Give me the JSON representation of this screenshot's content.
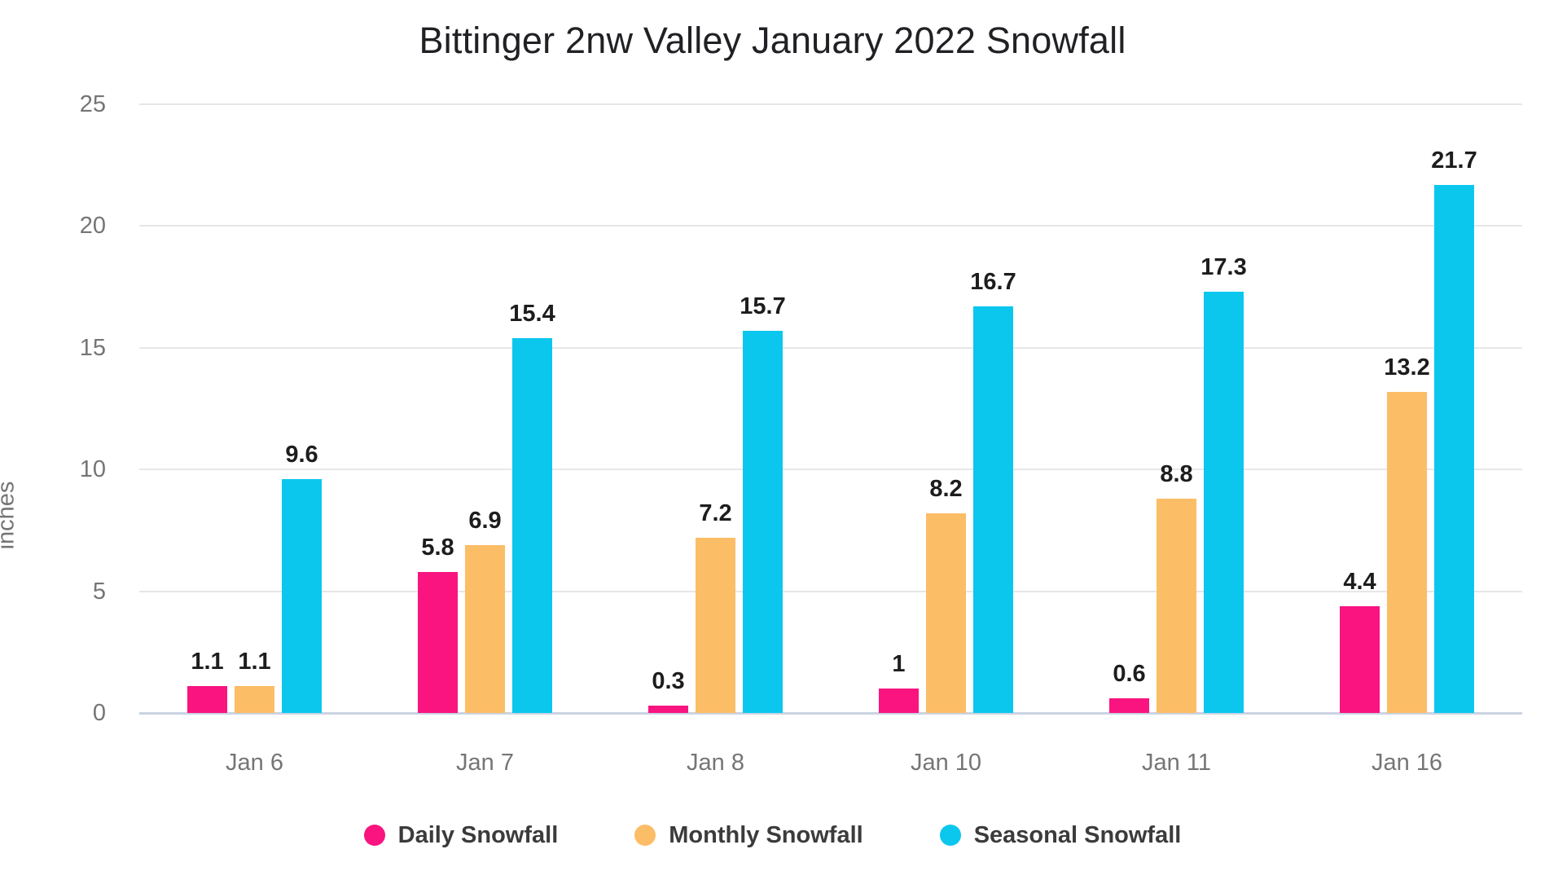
{
  "title": "Bittinger 2nw Valley January 2022 Snowfall",
  "chart_data": {
    "type": "bar",
    "title": "Bittinger 2nw Valley January 2022 Snowfall",
    "xlabel": "",
    "ylabel": "inches",
    "ylim": [
      0,
      25
    ],
    "yticks": [
      0,
      5,
      10,
      15,
      20,
      25
    ],
    "grid": true,
    "legend_position": "bottom",
    "categories": [
      "Jan 6",
      "Jan 7",
      "Jan 8",
      "Jan 10",
      "Jan 11",
      "Jan 16"
    ],
    "series": [
      {
        "name": "Daily Snowfall",
        "color": "#F91480",
        "values": [
          1.1,
          5.8,
          0.3,
          1,
          0.6,
          4.4
        ]
      },
      {
        "name": "Monthly Snowfall",
        "color": "#FCBD67",
        "values": [
          1.1,
          6.9,
          7.2,
          8.2,
          8.8,
          13.2
        ]
      },
      {
        "name": "Seasonal Snowfall",
        "color": "#0BC7EE",
        "values": [
          9.6,
          15.4,
          15.7,
          16.7,
          17.3,
          21.7
        ]
      }
    ],
    "data_labels_shown": true
  },
  "style_colors": {
    "background": "#ffffff",
    "title_color": "#202124",
    "grid_color": "#e7e7e7",
    "baseline_color": "#cbd3e2",
    "tick_label_color": "#757575",
    "axis_title_color": "#757575",
    "data_label_color": "#1d1d1f",
    "legend_text_color": "#3b3b3b"
  }
}
